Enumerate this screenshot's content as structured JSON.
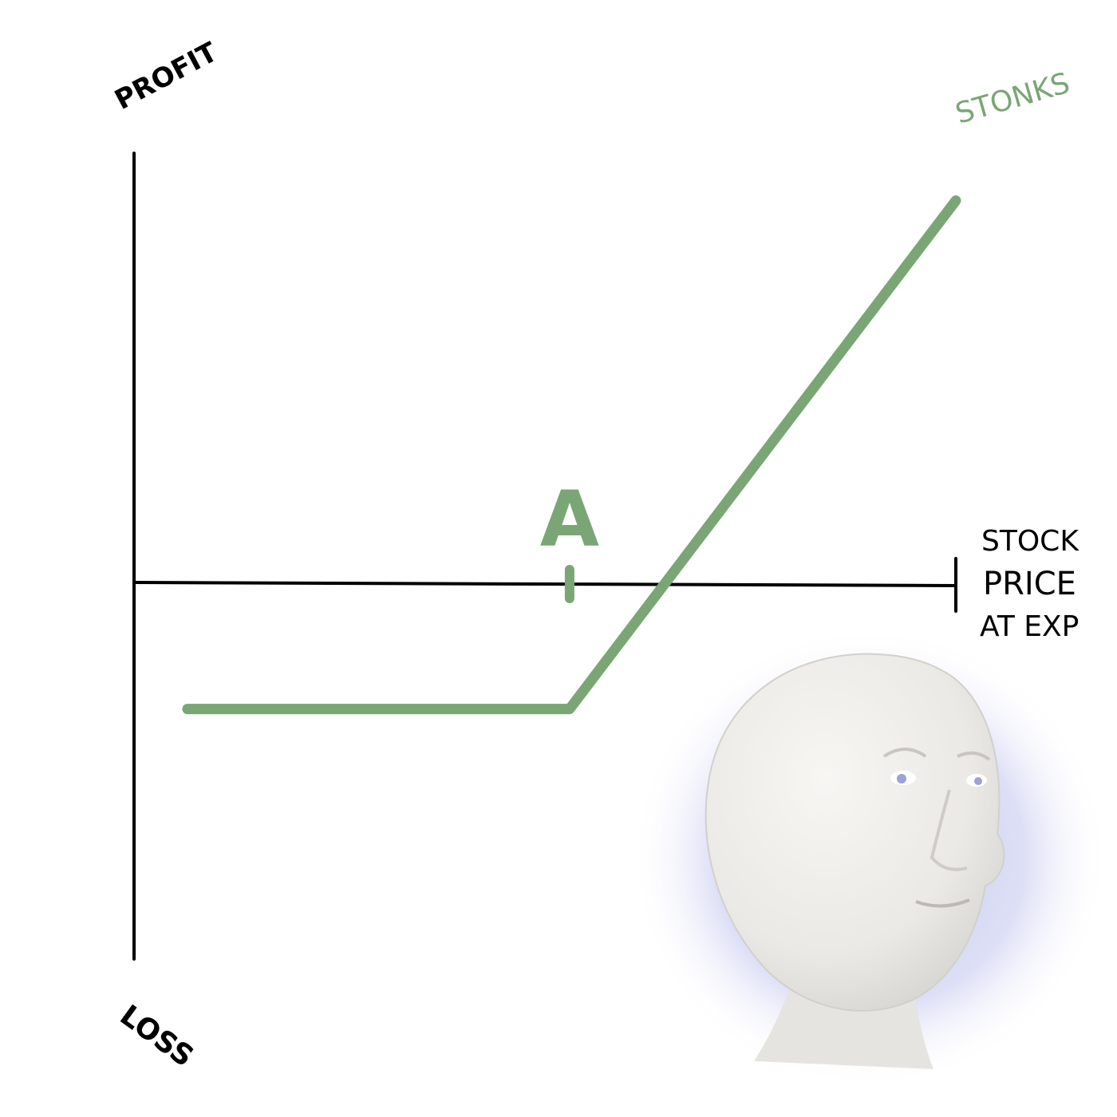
{
  "chart_data": {
    "type": "line",
    "title": "",
    "xlabel": "",
    "ylabel": "",
    "x_axis_label_lines": [
      "STOCK",
      "PRICE",
      "AT EXP"
    ],
    "y_axis_top_label": "PROFIT",
    "y_axis_bottom_label": "LOSS",
    "series": [
      {
        "name": "STONKS",
        "x": [
          0.065,
          0.53,
          1.0
        ],
        "y": [
          -0.29,
          -0.29,
          0.89
        ]
      }
    ],
    "strike_marker": {
      "label": "A",
      "x": 0.53
    },
    "xlim": [
      0,
      1
    ],
    "ylim": [
      -1,
      1
    ],
    "grid": false,
    "colors": {
      "series": "#7aa675",
      "axes": "#000000",
      "label": "#000000"
    }
  },
  "decor": {
    "meme_figure": "meme-man-head"
  }
}
